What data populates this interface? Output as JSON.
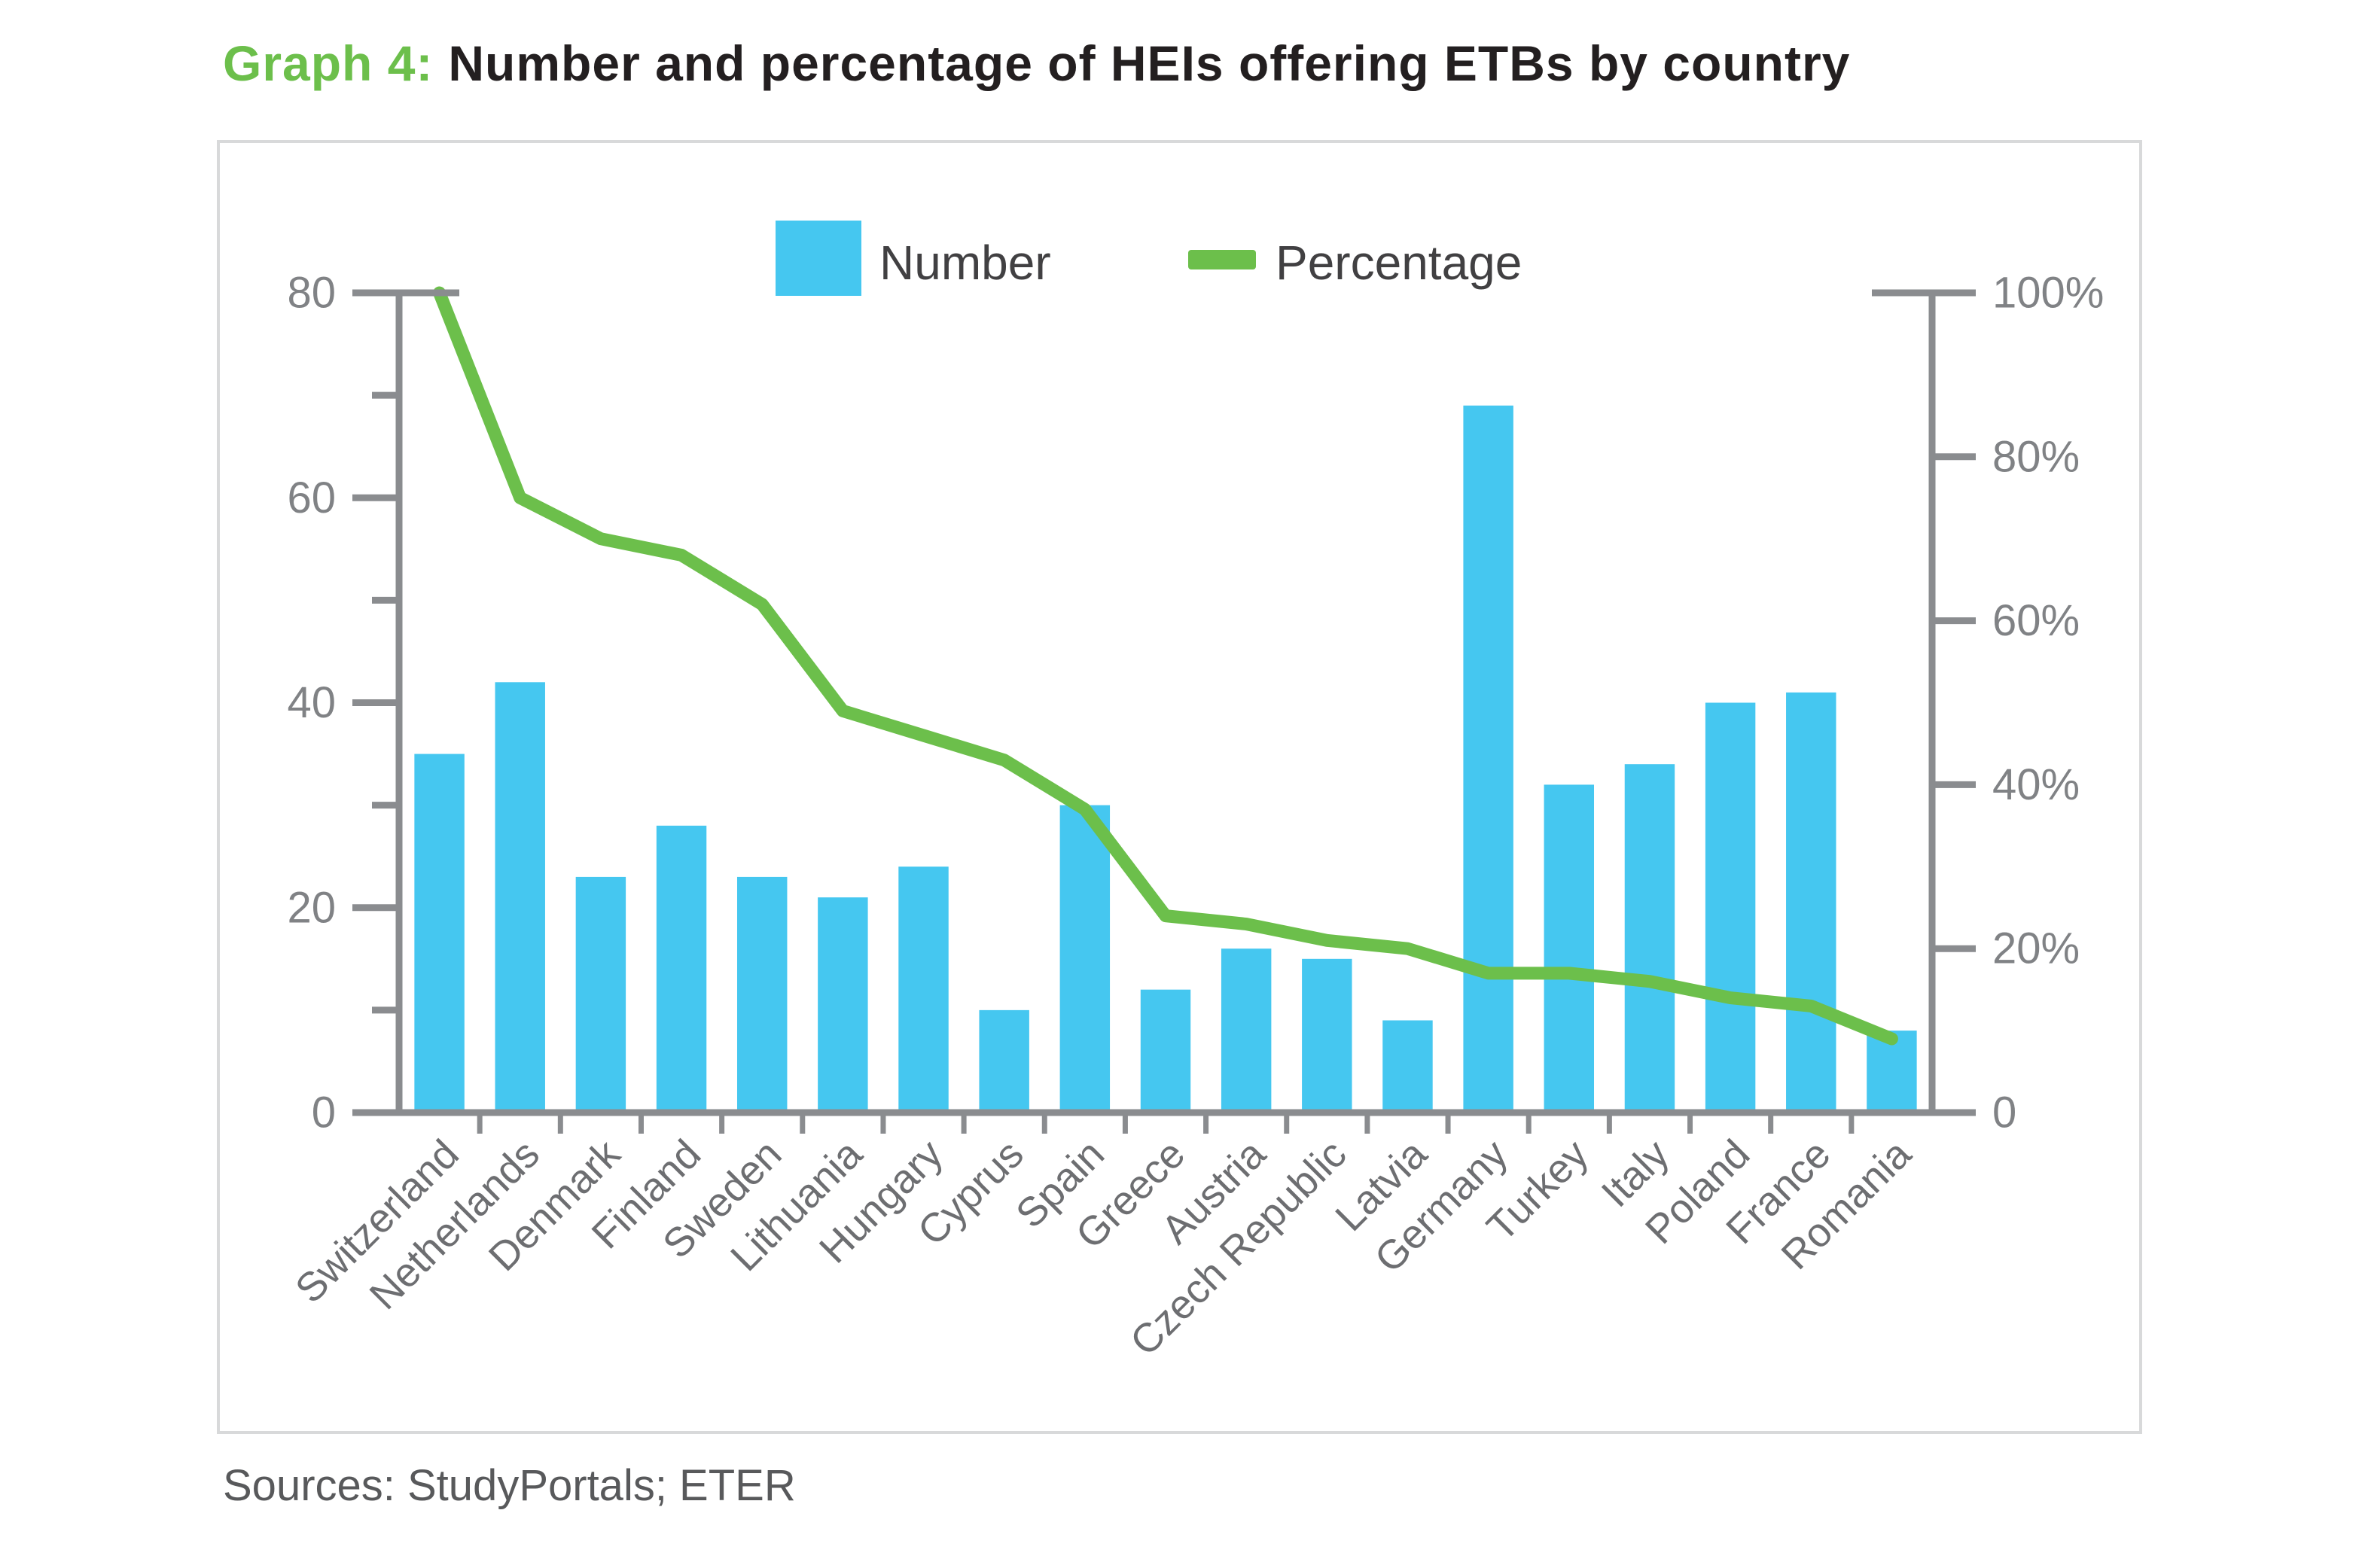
{
  "title": {
    "prefix": "Graph 4:",
    "text": "Number and percentage of HEIs offering ETBs by country"
  },
  "legend": [
    {
      "label": "Number",
      "type": "bar"
    },
    {
      "label": "Percentage",
      "type": "line"
    }
  ],
  "source_note": "Sources: StudyPortals; ETER",
  "colors": {
    "bar": "#45C7F0",
    "line": "#6CBF4B",
    "axis": "#8A8C8F",
    "tick_label": "#808285",
    "category_label": "#6D6E71",
    "title_accent": "#6CBF4B",
    "title_text": "#231F20",
    "border": "#D8D9DA"
  },
  "chart_data": {
    "type": "bar",
    "subtype": "bar+line dual axis",
    "title": "Graph 4: Number and percentage of HEIs offering ETBs by country",
    "categories": [
      "Switzerland",
      "Netherlands",
      "Denmark",
      "Finland",
      "Sweden",
      "Lithuania",
      "Hungary",
      "Cyprus",
      "Spain",
      "Greece",
      "Austria",
      "Czech Republic",
      "Latvia",
      "Germany",
      "Turkey",
      "Italy",
      "Poland",
      "France",
      "Romania"
    ],
    "series": [
      {
        "name": "Number",
        "type": "bar",
        "axis": "left",
        "values": [
          35,
          42,
          23,
          28,
          23,
          21,
          24,
          10,
          30,
          12,
          16,
          15,
          9,
          69,
          32,
          34,
          40,
          41,
          8
        ]
      },
      {
        "name": "Percentage",
        "type": "line",
        "axis": "right",
        "values": [
          100,
          75,
          70,
          68,
          62,
          49,
          46,
          43,
          37,
          24,
          23,
          21,
          20,
          17,
          17,
          16,
          14,
          13,
          9
        ]
      }
    ],
    "left_axis": {
      "label": "",
      "min": 0,
      "max": 80,
      "major_ticks": [
        0,
        20,
        40,
        60,
        80
      ],
      "minor_ticks": [
        10,
        30,
        50,
        70
      ],
      "tick_labels": [
        "0",
        "20",
        "40",
        "60",
        "80"
      ]
    },
    "right_axis": {
      "label": "",
      "min": 0,
      "max": 100,
      "major_ticks": [
        0,
        20,
        40,
        60,
        80,
        100
      ],
      "tick_labels": [
        "0",
        "20%",
        "40%",
        "60%",
        "80%",
        "100%"
      ]
    },
    "grid": false,
    "legend_position": "top-center"
  }
}
